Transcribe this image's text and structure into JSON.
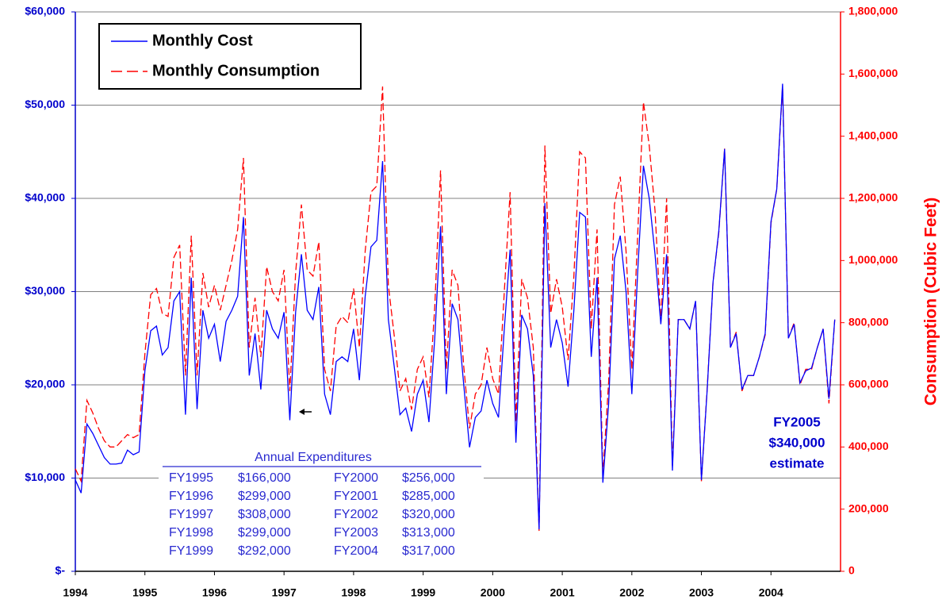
{
  "chart_data": {
    "type": "line",
    "categories": [
      "1994",
      null,
      null,
      null,
      null,
      null,
      null,
      null,
      null,
      null,
      null,
      null,
      "1995",
      null,
      null,
      null,
      null,
      null,
      null,
      null,
      null,
      null,
      null,
      null,
      "1996",
      null,
      null,
      null,
      null,
      null,
      null,
      null,
      null,
      null,
      null,
      null,
      "1997",
      null,
      null,
      null,
      null,
      null,
      null,
      null,
      null,
      null,
      null,
      null,
      "1998",
      null,
      null,
      null,
      null,
      null,
      null,
      null,
      null,
      null,
      null,
      null,
      "1999",
      null,
      null,
      null,
      null,
      null,
      null,
      null,
      null,
      null,
      null,
      null,
      "2000",
      null,
      null,
      null,
      null,
      null,
      null,
      null,
      null,
      null,
      null,
      null,
      "2001",
      null,
      null,
      null,
      null,
      null,
      null,
      null,
      null,
      null,
      null,
      null,
      "2002",
      null,
      null,
      null,
      null,
      null,
      null,
      null,
      null,
      null,
      null,
      null,
      "2003",
      null,
      null,
      null,
      null,
      null,
      null,
      null,
      null,
      null,
      null,
      null,
      "2004",
      null,
      null,
      null,
      null,
      null,
      null,
      null,
      null,
      null,
      null,
      null
    ],
    "series": [
      {
        "name": "Monthly Cost",
        "color": "#0000ff",
        "axis": "y",
        "values": [
          9800,
          8400,
          15800,
          14800,
          13500,
          12200,
          11500,
          11500,
          11600,
          13000,
          12500,
          12800,
          21500,
          25800,
          26300,
          23200,
          24000,
          29000,
          30000,
          16800,
          31500,
          17400,
          28000,
          25000,
          26500,
          22500,
          26800,
          28000,
          29500,
          38000,
          21000,
          25500,
          19500,
          28000,
          26000,
          25000,
          27800,
          16200,
          27800,
          34000,
          28000,
          27000,
          30500,
          19000,
          16800,
          22500,
          23000,
          22500,
          26000,
          20500,
          29500,
          34800,
          35500,
          44000,
          27000,
          22000,
          16800,
          17500,
          15000,
          19000,
          20500,
          16000,
          25000,
          37000,
          19000,
          28700,
          27000,
          20000,
          13300,
          16500,
          17200,
          20500,
          18000,
          16500,
          26000,
          34500,
          13800,
          27500,
          26000,
          21000,
          4500,
          39500,
          24000,
          27000,
          24500,
          19800,
          28000,
          38500,
          38000,
          23000,
          31500,
          9500,
          18000,
          33500,
          36000,
          30000,
          19000,
          32000,
          43500,
          40000,
          34000,
          26500,
          34000,
          10800,
          27000,
          27000,
          26000,
          29000,
          9800,
          19500,
          31000,
          36500,
          45300,
          24000,
          25500,
          19500,
          21000,
          21000,
          23000,
          25500,
          37500,
          41000,
          52300,
          25000,
          26500,
          20200,
          21500,
          21800,
          24000,
          26000,
          18500,
          27000
        ]
      },
      {
        "name": "Monthly Consumption",
        "color": "#ff0000",
        "axis": "y2",
        "dashed": true,
        "values": [
          330000,
          290000,
          550000,
          510000,
          460000,
          420000,
          400000,
          400000,
          420000,
          440000,
          430000,
          440000,
          700000,
          890000,
          910000,
          830000,
          820000,
          1010000,
          1050000,
          630000,
          1080000,
          630000,
          960000,
          850000,
          920000,
          840000,
          920000,
          1000000,
          1100000,
          1330000,
          720000,
          880000,
          690000,
          980000,
          900000,
          870000,
          970000,
          580000,
          960000,
          1180000,
          970000,
          950000,
          1060000,
          650000,
          580000,
          790000,
          820000,
          800000,
          910000,
          720000,
          1030000,
          1220000,
          1240000,
          1560000,
          920000,
          760000,
          580000,
          620000,
          520000,
          650000,
          690000,
          560000,
          850000,
          1290000,
          650000,
          970000,
          920000,
          660000,
          460000,
          570000,
          600000,
          720000,
          620000,
          570000,
          900000,
          1220000,
          480000,
          940000,
          880000,
          720000,
          130000,
          1370000,
          830000,
          940000,
          850000,
          680000,
          950000,
          1350000,
          1330000,
          780000,
          1100000,
          310000,
          610000,
          1180000,
          1270000,
          1030000,
          650000,
          1080000,
          1510000,
          1370000,
          1160000,
          800000,
          1200000,
          340000,
          810000,
          810000,
          780000,
          870000,
          290000,
          590000,
          930000,
          1090000,
          1360000,
          720000,
          770000,
          580000,
          630000,
          630000,
          690000,
          760000,
          1120000,
          1230000,
          1560000,
          750000,
          800000,
          600000,
          650000,
          650000,
          720000,
          780000,
          540000,
          810000
        ]
      }
    ],
    "ylim": [
      0,
      60000
    ],
    "yticks": [
      {
        "value": 0,
        "label": "$-"
      },
      {
        "value": 10000,
        "label": "$10,000"
      },
      {
        "value": 20000,
        "label": "$20,000"
      },
      {
        "value": 30000,
        "label": "$30,000"
      },
      {
        "value": 40000,
        "label": "$40,000"
      },
      {
        "value": 50000,
        "label": "$50,000"
      },
      {
        "value": 60000,
        "label": "$60,000"
      }
    ],
    "y2lim": [
      0,
      1800000
    ],
    "y2ticks": [
      0,
      {
        "value": 200000,
        "label": "200,000"
      },
      {
        "value": 400000,
        "label": "400,000"
      },
      {
        "value": 600000,
        "label": "600,000"
      },
      {
        "value": 800000,
        "label": "800,000"
      },
      {
        "value": 1000000,
        "label": "1,000,000"
      },
      {
        "value": 1200000,
        "label": "1,200,000"
      },
      {
        "value": 1400000,
        "label": "1,400,000"
      },
      {
        "value": 1600000,
        "label": "1,600,000"
      },
      {
        "value": 1800000,
        "label": "1,800,000"
      }
    ],
    "y2label": "Consumption (Cubic Feet)",
    "grid": true,
    "legend": "top-left",
    "table": {
      "title": "Annual Expenditures",
      "rows": [
        [
          "FY1995",
          "$166,000",
          "FY2000",
          "$256,000"
        ],
        [
          "FY1996",
          "$299,000",
          "FY2001",
          "$285,000"
        ],
        [
          "FY1997",
          "$308,000",
          "FY2002",
          "$320,000"
        ],
        [
          "FY1998",
          "$299,000",
          "FY2003",
          "$313,000"
        ],
        [
          "FY1999",
          "$292,000",
          "FY2004",
          "$317,000"
        ]
      ]
    },
    "annotations": [
      "FY2005",
      "$340,000",
      "estimate"
    ]
  }
}
